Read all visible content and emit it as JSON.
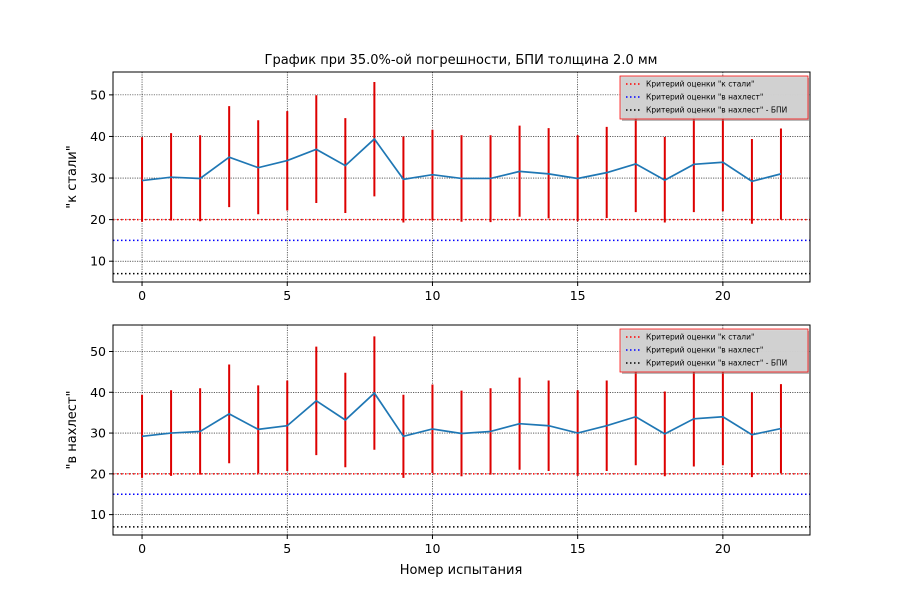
{
  "figure": {
    "title": "График при 35.0%-ой погрешности, БПИ толщина 2.0 мм",
    "xlabel": "Номер испытания"
  },
  "colors": {
    "line": "#1f77b4",
    "error_bar": "#dd0000",
    "k_stali": "#ff0000",
    "v_nahlest": "#0000ff",
    "bpi": "#000000",
    "grid": "#000000",
    "legend_edge": "#ff0000",
    "legend_face": "#d3d3d3"
  },
  "chart_data": [
    {
      "type": "line",
      "title": "График при 35.0%-ой погрешности, БПИ толщина 2.0 мм",
      "ylabel": "\"к стали\"",
      "xlabel": "",
      "xlim": [
        -1,
        23
      ],
      "ylim": [
        5,
        55.5
      ],
      "xticks": [
        0,
        5,
        10,
        15,
        20
      ],
      "yticks": [
        10,
        20,
        30,
        40,
        50
      ],
      "grid": true,
      "legend_position": "top-right",
      "x": [
        0,
        1,
        2,
        3,
        4,
        5,
        6,
        7,
        8,
        9,
        10,
        11,
        12,
        13,
        14,
        15,
        16,
        17,
        18,
        19,
        20,
        21,
        22
      ],
      "series": [
        {
          "name": "",
          "values": [
            29.4,
            30.2,
            29.9,
            35.0,
            32.5,
            34.2,
            36.9,
            33.0,
            39.4,
            29.7,
            30.8,
            29.9,
            29.9,
            31.6,
            31.0,
            29.9,
            31.3,
            33.4,
            29.5,
            33.3,
            33.8,
            29.2,
            31.0
          ],
          "err_low": [
            19.5,
            19.8,
            19.6,
            23.0,
            21.3,
            22.2,
            24.0,
            21.6,
            25.6,
            19.3,
            19.8,
            19.5,
            19.4,
            20.7,
            20.3,
            19.6,
            20.4,
            21.8,
            19.3,
            21.8,
            22.0,
            19.0,
            20.1
          ],
          "err_high": [
            39.8,
            40.8,
            40.3,
            47.3,
            43.9,
            46.1,
            49.9,
            44.4,
            53.1,
            40.0,
            41.6,
            40.3,
            40.3,
            42.6,
            42.0,
            40.3,
            42.3,
            45.1,
            39.9,
            45.0,
            45.6,
            39.4,
            41.9
          ]
        }
      ],
      "reference_lines": [
        {
          "name": "Критерий оценки \"к стали\"",
          "y": 20,
          "color_key": "k_stali"
        },
        {
          "name": "Критерий оценки \"в нахлест\"",
          "y": 15,
          "color_key": "v_nahlest"
        },
        {
          "name": "Критерий оценки \"в нахлест\" - БПИ",
          "y": 7,
          "color_key": "bpi"
        }
      ]
    },
    {
      "type": "line",
      "title": "",
      "ylabel": "\"в нахлест\"",
      "xlabel": "Номер испытания",
      "xlim": [
        -1,
        23
      ],
      "ylim": [
        5,
        56.5
      ],
      "xticks": [
        0,
        5,
        10,
        15,
        20
      ],
      "yticks": [
        10,
        20,
        30,
        40,
        50
      ],
      "grid": true,
      "legend_position": "top-right",
      "x": [
        0,
        1,
        2,
        3,
        4,
        5,
        6,
        7,
        8,
        9,
        10,
        11,
        12,
        13,
        14,
        15,
        16,
        17,
        18,
        19,
        20,
        21,
        22
      ],
      "series": [
        {
          "name": "",
          "values": [
            29.2,
            30.0,
            30.4,
            34.7,
            30.9,
            31.8,
            37.9,
            33.2,
            39.8,
            29.2,
            31.0,
            29.9,
            30.4,
            32.3,
            31.8,
            30.0,
            31.8,
            34.0,
            29.8,
            33.5,
            34.0,
            29.6,
            31.1
          ],
          "err_low": [
            19.0,
            19.5,
            19.8,
            22.6,
            20.1,
            20.7,
            24.6,
            21.6,
            25.9,
            19.0,
            20.2,
            19.4,
            19.8,
            21.0,
            20.7,
            19.5,
            20.7,
            22.1,
            19.4,
            21.8,
            22.1,
            19.2,
            20.2
          ],
          "err_high": [
            39.4,
            40.5,
            41.0,
            46.8,
            41.7,
            42.9,
            51.2,
            44.8,
            53.7,
            39.4,
            41.9,
            40.4,
            41.0,
            43.6,
            42.9,
            40.5,
            42.9,
            45.9,
            40.2,
            45.2,
            45.9,
            40.0,
            42.0
          ]
        }
      ],
      "reference_lines": [
        {
          "name": "Критерий оценки \"к стали\"",
          "y": 20,
          "color_key": "k_stali"
        },
        {
          "name": "Критерий оценки \"в нахлест\"",
          "y": 15,
          "color_key": "v_nahlest"
        },
        {
          "name": "Критерий оценки \"в нахлест\" - БПИ",
          "y": 7,
          "color_key": "bpi"
        }
      ]
    }
  ]
}
